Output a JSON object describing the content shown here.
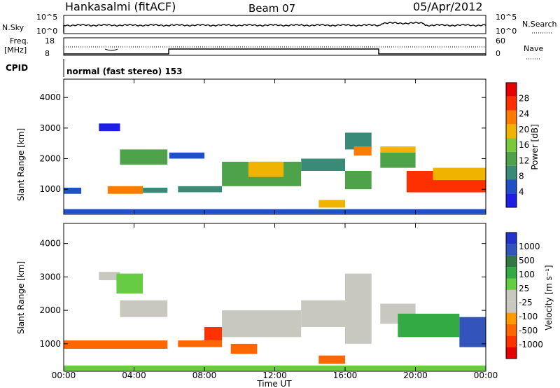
{
  "header": {
    "station": "Hankasalmi (fitACF)",
    "beam": "Beam 07",
    "date": "05/Apr/2012"
  },
  "top_panels": {
    "nsky_label": "N.Sky",
    "nsky_ticks": [
      "10^5",
      "10^0"
    ],
    "nsearch_label": "N.Search",
    "nsearch_ticks": [
      "10^5",
      "10^0"
    ],
    "freq_label_1": "Freq.",
    "freq_label_2": "[MHz]",
    "freq_ticks": [
      "18",
      "8"
    ],
    "nave_label": "Nave",
    "nave_ticks": [
      "60",
      "0"
    ],
    "cpid_label": "CPID",
    "cpid_text": "normal (fast stereo) 153"
  },
  "colors": {
    "power_scale": [
      "#1e1ee6",
      "#2050c8",
      "#3a8a78",
      "#4da24a",
      "#7ac83c",
      "#f0b400",
      "#ff7a00",
      "#ff3000",
      "#e60000"
    ],
    "velocity_scale": [
      "#2233cc",
      "#3355bb",
      "#337744",
      "#33aa44",
      "#66cc44",
      "#c8c8c0",
      "#c8c8c0",
      "#ff9900",
      "#ff6600",
      "#ff3300",
      "#e60000"
    ]
  },
  "chart_data": [
    {
      "type": "heatmap",
      "name": "power",
      "ylabel": "Slant Range [km]",
      "xlabel": "",
      "ylim": [
        180,
        4600
      ],
      "yticks": [
        "1000",
        "2000",
        "3000",
        "4000"
      ],
      "xticks": [
        "00:00",
        "04:00",
        "08:00",
        "12:00",
        "16:00",
        "20:00",
        "00:00"
      ],
      "colorbar_label": "Power [dB]",
      "colorbar_ticks": [
        "4",
        "8",
        "12",
        "16",
        "20",
        "24",
        "28"
      ],
      "regions": [
        {
          "t": [
            0.0,
            1.0
          ],
          "r": [
            850,
            1050
          ],
          "v": 7
        },
        {
          "t": [
            0.0,
            24.0
          ],
          "r": [
            200,
            350
          ],
          "v": 8
        },
        {
          "t": [
            2.0,
            3.2
          ],
          "r": [
            2900,
            3150
          ],
          "v": 4
        },
        {
          "t": [
            3.2,
            5.9
          ],
          "r": [
            1800,
            2300
          ],
          "v": 14
        },
        {
          "t": [
            2.5,
            4.5
          ],
          "r": [
            850,
            1100
          ],
          "v": 22
        },
        {
          "t": [
            4.5,
            5.9
          ],
          "r": [
            880,
            1050
          ],
          "v": 11
        },
        {
          "t": [
            6.5,
            9.0
          ],
          "r": [
            900,
            1100
          ],
          "v": 10
        },
        {
          "t": [
            6.0,
            8.0
          ],
          "r": [
            2000,
            2200
          ],
          "v": 6
        },
        {
          "t": [
            9.0,
            13.5
          ],
          "r": [
            1100,
            1900
          ],
          "v": 14
        },
        {
          "t": [
            10.5,
            12.5
          ],
          "r": [
            1400,
            1900
          ],
          "v": 20
        },
        {
          "t": [
            13.5,
            16.0
          ],
          "r": [
            1600,
            2000
          ],
          "v": 11
        },
        {
          "t": [
            14.5,
            16.0
          ],
          "r": [
            400,
            650
          ],
          "v": 18
        },
        {
          "t": [
            16.0,
            17.5
          ],
          "r": [
            1000,
            1600
          ],
          "v": 12
        },
        {
          "t": [
            16.0,
            17.5
          ],
          "r": [
            2300,
            2850
          ],
          "v": 9
        },
        {
          "t": [
            16.5,
            17.5
          ],
          "r": [
            2100,
            2400
          ],
          "v": 24
        },
        {
          "t": [
            18.0,
            20.0
          ],
          "r": [
            2200,
            2400
          ],
          "v": 19
        },
        {
          "t": [
            18.0,
            20.0
          ],
          "r": [
            1700,
            2200
          ],
          "v": 13
        },
        {
          "t": [
            19.5,
            24.0
          ],
          "r": [
            900,
            1600
          ],
          "v": 27
        },
        {
          "t": [
            21.0,
            24.0
          ],
          "r": [
            1300,
            1700
          ],
          "v": 20
        }
      ]
    },
    {
      "type": "heatmap",
      "name": "velocity",
      "ylabel": "Slant Range [km]",
      "xlabel": "Time UT",
      "ylim": [
        180,
        4600
      ],
      "yticks": [
        "1000",
        "2000",
        "3000",
        "4000"
      ],
      "xticks": [
        "00:00",
        "04:00",
        "08:00",
        "12:00",
        "16:00",
        "20:00",
        "00:00"
      ],
      "colorbar_label": "Velocity [m s⁻¹]",
      "colorbar_ticks": [
        "1000",
        "500",
        "100",
        "25",
        "-25",
        "-100",
        "-500",
        "-1000"
      ],
      "regions": [
        {
          "t": [
            0.0,
            24.0
          ],
          "r": [
            200,
            350
          ],
          "v": 60
        },
        {
          "t": [
            2.0,
            3.2
          ],
          "r": [
            2900,
            3150
          ],
          "v": 0
        },
        {
          "t": [
            3.2,
            5.9
          ],
          "r": [
            1800,
            2300
          ],
          "v": 0
        },
        {
          "t": [
            3.0,
            4.5
          ],
          "r": [
            2500,
            3100
          ],
          "v": 50
        },
        {
          "t": [
            0.0,
            5.9
          ],
          "r": [
            850,
            1100
          ],
          "v": -150
        },
        {
          "t": [
            6.5,
            9.0
          ],
          "r": [
            900,
            1100
          ],
          "v": -150
        },
        {
          "t": [
            8.0,
            9.0
          ],
          "r": [
            1100,
            1500
          ],
          "v": -300
        },
        {
          "t": [
            9.0,
            13.5
          ],
          "r": [
            1200,
            2000
          ],
          "v": 0
        },
        {
          "t": [
            9.5,
            11.0
          ],
          "r": [
            700,
            1000
          ],
          "v": -120
        },
        {
          "t": [
            13.5,
            16.0
          ],
          "r": [
            1500,
            2300
          ],
          "v": 0
        },
        {
          "t": [
            14.5,
            16.0
          ],
          "r": [
            400,
            650
          ],
          "v": -110
        },
        {
          "t": [
            16.0,
            17.5
          ],
          "r": [
            1000,
            3100
          ],
          "v": 0
        },
        {
          "t": [
            18.0,
            20.0
          ],
          "r": [
            1600,
            2200
          ],
          "v": 0
        },
        {
          "t": [
            19.0,
            22.5
          ],
          "r": [
            1200,
            1900
          ],
          "v": 150
        },
        {
          "t": [
            22.5,
            24.0
          ],
          "r": [
            900,
            1800
          ],
          "v": 600
        }
      ]
    }
  ]
}
